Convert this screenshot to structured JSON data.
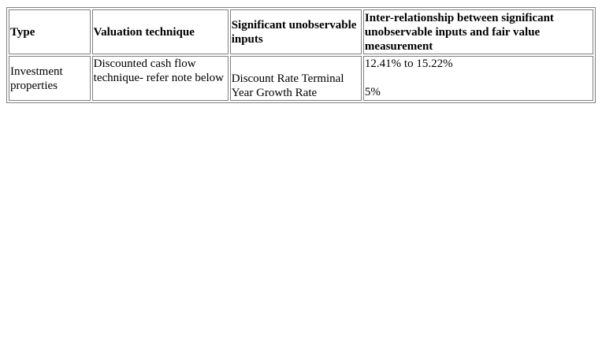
{
  "table": {
    "headers": {
      "type": "Type",
      "technique": "Valuation technique",
      "inputs": "Significant unobservable inputs",
      "relationship": "Inter-relationship between significant unobservable inputs and fair value measurement"
    },
    "rows": [
      {
        "type": "Investment properties",
        "technique": "Discounted cash flow technique- refer note below",
        "inputs": "Discount Rate Terminal Year Growth Rate",
        "relationship_line1": "12.41% to 15.22%",
        "relationship_line2": "5%"
      }
    ]
  }
}
